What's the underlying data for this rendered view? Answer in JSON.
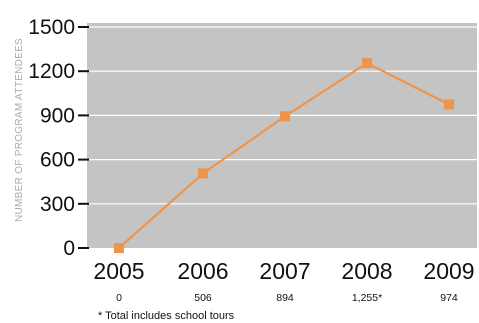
{
  "chart_data": {
    "type": "line",
    "ylabel": "NUMBER OF PROGRAM ATTENDEES",
    "xlabel": "",
    "categories": [
      "2005",
      "2006",
      "2007",
      "2008",
      "2009"
    ],
    "values": [
      0,
      506,
      894,
      1255,
      974
    ],
    "value_labels": [
      "0",
      "506",
      "894",
      "1,255*",
      "974"
    ],
    "yticks": [
      0,
      300,
      600,
      900,
      1200,
      1500
    ],
    "ytick_labels": [
      "0",
      "300",
      "600",
      "900",
      "1200",
      "1500"
    ],
    "ylim": [
      0,
      1500
    ],
    "grid": true,
    "footnote": "* Total includes school tours",
    "colors": {
      "line": "#f0944a",
      "marker": "#f0944a",
      "plot_background": "#c4c4c4",
      "gridline": "#ffffff",
      "axis_label": "#aaaaaa"
    }
  }
}
